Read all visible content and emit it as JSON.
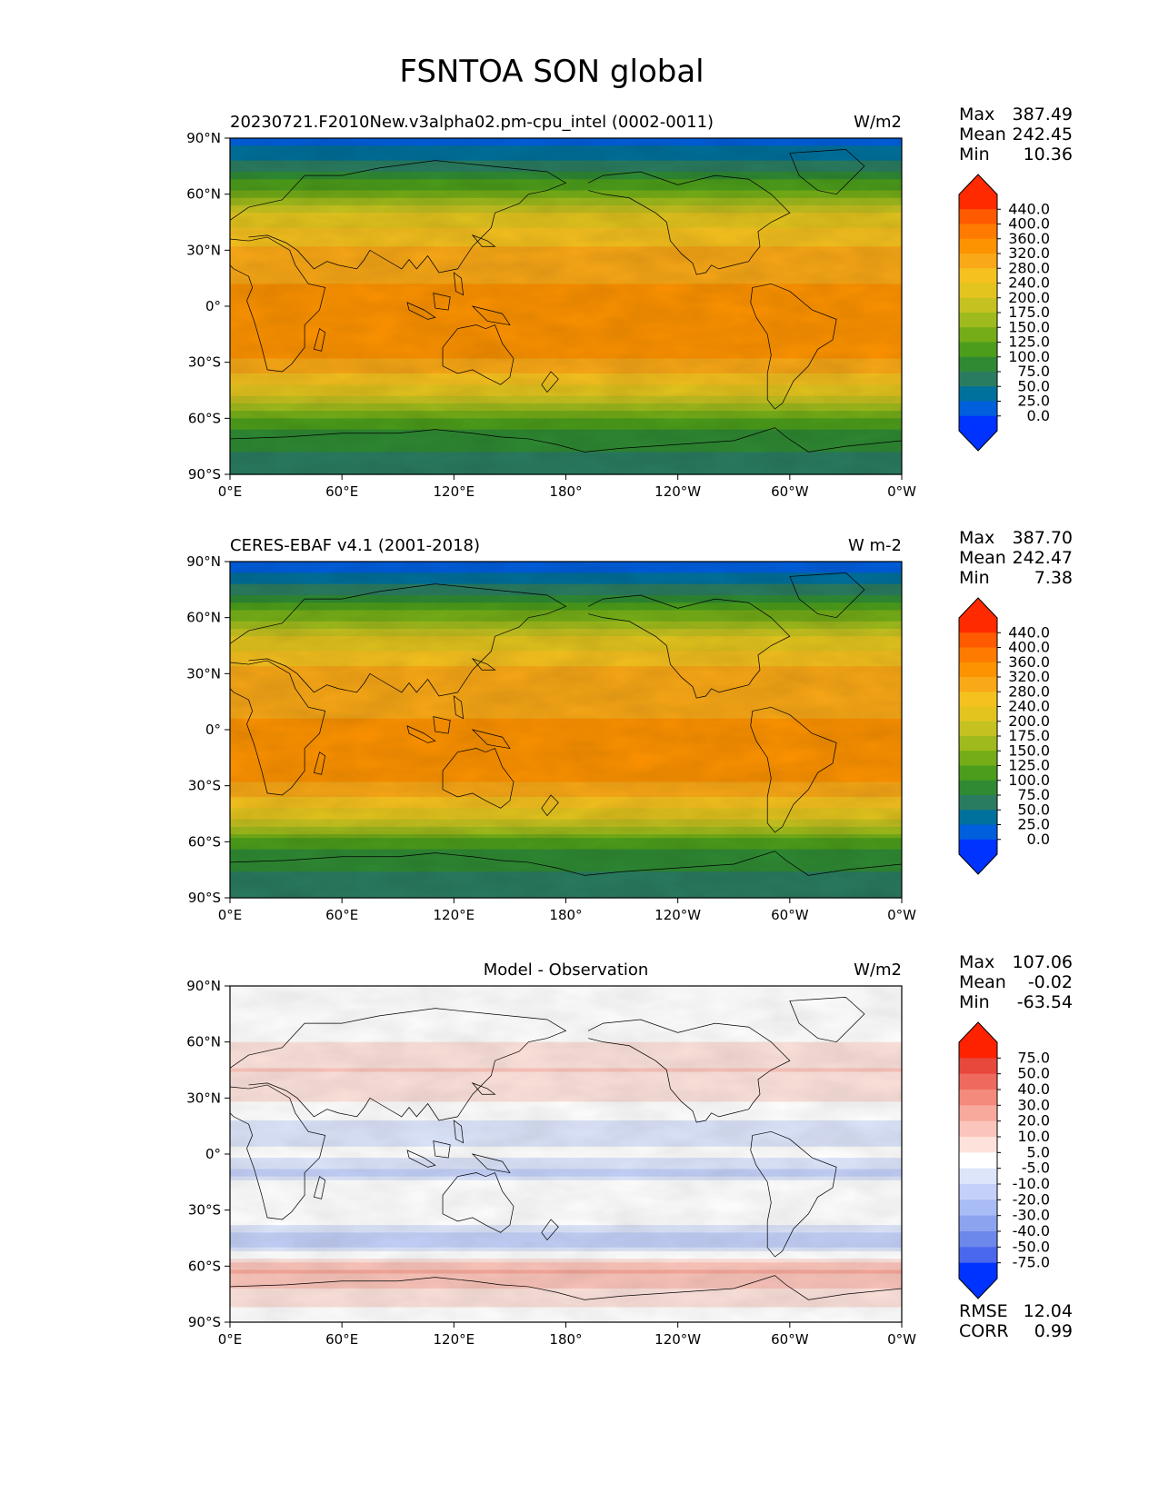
{
  "chart_data": {
    "type": "heatmap",
    "title": "FSNTOA SON global",
    "lat_ticks": [
      "90°N",
      "60°N",
      "30°N",
      "0°",
      "30°S",
      "60°S",
      "90°S"
    ],
    "lon_ticks": [
      "0°E",
      "60°E",
      "120°E",
      "180°",
      "120°W",
      "60°W",
      "0°W"
    ],
    "lat_range": [
      -90,
      90
    ],
    "lon_range": [
      0,
      360
    ],
    "panels": [
      {
        "id": "model",
        "title_left": "20230721.F2010New.v3alpha02.pm-cpu_intel (0002-0011)",
        "title_center": "",
        "units": "W/m2",
        "stats": [
          {
            "label": "Max",
            "value": "387.49"
          },
          {
            "label": "Mean",
            "value": "242.45"
          },
          {
            "label": "Min",
            "value": "10.36"
          }
        ],
        "colorbar_levels": [
          "440.0",
          "400.0",
          "360.0",
          "320.0",
          "280.0",
          "240.0",
          "200.0",
          "175.0",
          "150.0",
          "125.0",
          "100.0",
          "75.0",
          "50.0",
          "25.0",
          "0.0"
        ],
        "colorbar_colors": [
          "#ff2a00",
          "#ff5a00",
          "#ff7a00",
          "#fd9300",
          "#f9a817",
          "#f5c11f",
          "#e3c41e",
          "#c4c120",
          "#9fba1c",
          "#74ad18",
          "#4c9d1b",
          "#2f8a33",
          "#2a7c60",
          "#00719c",
          "#005fdd",
          "#0033ff"
        ],
        "zonal_profile": [
          {
            "lat": 90,
            "value": 12
          },
          {
            "lat": 80,
            "value": 40
          },
          {
            "lat": 70,
            "value": 88
          },
          {
            "lat": 60,
            "value": 140
          },
          {
            "lat": 50,
            "value": 195
          },
          {
            "lat": 40,
            "value": 250
          },
          {
            "lat": 30,
            "value": 290
          },
          {
            "lat": 20,
            "value": 315
          },
          {
            "lat": 10,
            "value": 322
          },
          {
            "lat": 0,
            "value": 330
          },
          {
            "lat": -10,
            "value": 338
          },
          {
            "lat": -20,
            "value": 335
          },
          {
            "lat": -30,
            "value": 315
          },
          {
            "lat": -40,
            "value": 260
          },
          {
            "lat": -50,
            "value": 190
          },
          {
            "lat": -60,
            "value": 128
          },
          {
            "lat": -70,
            "value": 85
          },
          {
            "lat": -80,
            "value": 72
          },
          {
            "lat": -90,
            "value": 70
          }
        ]
      },
      {
        "id": "obs",
        "title_left": "CERES-EBAF v4.1 (2001-2018)",
        "title_center": "",
        "units": "W m-2",
        "stats": [
          {
            "label": "Max",
            "value": "387.70"
          },
          {
            "label": "Mean",
            "value": "242.47"
          },
          {
            "label": "Min",
            "value": "7.38"
          }
        ],
        "colorbar_levels": [
          "440.0",
          "400.0",
          "360.0",
          "320.0",
          "280.0",
          "240.0",
          "200.0",
          "175.0",
          "150.0",
          "125.0",
          "100.0",
          "75.0",
          "50.0",
          "25.0",
          "0.0"
        ],
        "colorbar_colors": [
          "#ff2a00",
          "#ff5a00",
          "#ff7a00",
          "#fd9300",
          "#f9a817",
          "#f5c11f",
          "#e3c41e",
          "#c4c120",
          "#9fba1c",
          "#74ad18",
          "#4c9d1b",
          "#2f8a33",
          "#2a7c60",
          "#00719c",
          "#005fdd",
          "#0033ff"
        ],
        "zonal_profile": [
          {
            "lat": 90,
            "value": 8
          },
          {
            "lat": 80,
            "value": 38
          },
          {
            "lat": 70,
            "value": 86
          },
          {
            "lat": 60,
            "value": 142
          },
          {
            "lat": 50,
            "value": 200
          },
          {
            "lat": 40,
            "value": 255
          },
          {
            "lat": 30,
            "value": 300
          },
          {
            "lat": 20,
            "value": 320
          },
          {
            "lat": 10,
            "value": 315
          },
          {
            "lat": 0,
            "value": 325
          },
          {
            "lat": -10,
            "value": 335
          },
          {
            "lat": -20,
            "value": 333
          },
          {
            "lat": -30,
            "value": 318
          },
          {
            "lat": -40,
            "value": 262
          },
          {
            "lat": -50,
            "value": 185
          },
          {
            "lat": -60,
            "value": 118
          },
          {
            "lat": -70,
            "value": 80
          },
          {
            "lat": -80,
            "value": 72
          },
          {
            "lat": -90,
            "value": 70
          }
        ]
      },
      {
        "id": "diff",
        "title_left": "",
        "title_center": "Model - Observation",
        "units": "W/m2",
        "stats": [
          {
            "label": "Max",
            "value": "107.06"
          },
          {
            "label": "Mean",
            "value": "-0.02"
          },
          {
            "label": "Min",
            "value": "-63.54"
          }
        ],
        "colorbar_levels": [
          "75.0",
          "50.0",
          "40.0",
          "30.0",
          "20.0",
          "10.0",
          "5.0",
          "-5.0",
          "-10.0",
          "-20.0",
          "-30.0",
          "-40.0",
          "-50.0",
          "-75.0"
        ],
        "colorbar_colors": [
          "#ff2200",
          "#e8473c",
          "#ef6a5e",
          "#f38a7c",
          "#f7a99c",
          "#fbc5bb",
          "#fde2dc",
          "#ffffff",
          "#dde5fb",
          "#c4d0f8",
          "#a9bcf5",
          "#8ca4f0",
          "#6c88ea",
          "#4a68ee",
          "#0033ff"
        ],
        "extra_stats": [
          {
            "label": "RMSE",
            "value": "12.04"
          },
          {
            "label": "CORR",
            "value": "0.99"
          }
        ],
        "zonal_profile": [
          {
            "lat": 90,
            "value": 0
          },
          {
            "lat": 60,
            "value": 5
          },
          {
            "lat": 45,
            "value": 10
          },
          {
            "lat": 30,
            "value": 6
          },
          {
            "lat": 15,
            "value": -8
          },
          {
            "lat": 0,
            "value": -4
          },
          {
            "lat": -10,
            "value": -12
          },
          {
            "lat": -20,
            "value": 4
          },
          {
            "lat": -35,
            "value": -3
          },
          {
            "lat": -48,
            "value": -15
          },
          {
            "lat": -62,
            "value": 22
          },
          {
            "lat": -72,
            "value": 10
          },
          {
            "lat": -90,
            "value": 0
          }
        ]
      }
    ]
  }
}
